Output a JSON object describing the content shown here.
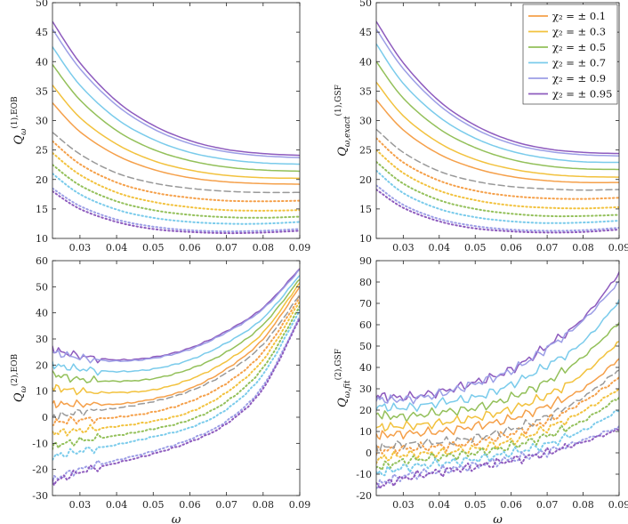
{
  "legend": {
    "entries": [
      {
        "label": "χ₂ = ± 0.1",
        "color": "#F5A04A"
      },
      {
        "label": "χ₂ = ± 0.3",
        "color": "#F2C23E"
      },
      {
        "label": "χ₂ = ± 0.5",
        "color": "#93C05A"
      },
      {
        "label": "χ₂ = ± 0.7",
        "color": "#7ACBEB"
      },
      {
        "label": "χ₂ = ± 0.9",
        "color": "#9C9EE6"
      },
      {
        "label": "χ₂ = ± 0.95",
        "color": "#8E5BBE"
      }
    ]
  },
  "chart_data": [
    {
      "type": "line",
      "panel": "top-left",
      "ylabel": "Q_ω^(1),EOB",
      "xlabel": "",
      "xlim": [
        0.0225,
        0.09
      ],
      "ylim": [
        10,
        50
      ],
      "xticks": [
        0.03,
        0.04,
        0.05,
        0.06,
        0.07,
        0.08,
        0.09
      ],
      "yticks": [
        10,
        15,
        20,
        25,
        30,
        35,
        40,
        45,
        50
      ],
      "x": [
        0.0225,
        0.03,
        0.04,
        0.05,
        0.06,
        0.07,
        0.08,
        0.09
      ],
      "reference": {
        "name": "χ₂ = 0",
        "values": [
          28.0,
          24.3,
          21.1,
          19.4,
          18.5,
          18.0,
          17.8,
          17.8
        ]
      },
      "series": [
        {
          "name": "+0.95",
          "values": [
            46.8,
            39.8,
            33.3,
            29.2,
            26.6,
            25.1,
            24.4,
            24.1
          ]
        },
        {
          "name": "+0.9",
          "values": [
            45.5,
            38.8,
            32.6,
            28.6,
            26.1,
            24.7,
            24.0,
            23.7
          ]
        },
        {
          "name": "+0.7",
          "values": [
            42.5,
            36.0,
            30.3,
            26.8,
            24.6,
            23.4,
            22.8,
            22.6
          ]
        },
        {
          "name": "+0.5",
          "values": [
            39.5,
            33.5,
            28.3,
            25.1,
            23.2,
            22.1,
            21.6,
            21.4
          ]
        },
        {
          "name": "+0.3",
          "values": [
            36.0,
            30.5,
            26.0,
            23.2,
            21.6,
            20.7,
            20.3,
            20.2
          ]
        },
        {
          "name": "+0.1",
          "values": [
            33.0,
            28.1,
            24.1,
            21.7,
            20.3,
            19.6,
            19.3,
            19.2
          ]
        },
        {
          "name": "-0.1",
          "values": [
            26.5,
            22.6,
            19.5,
            17.8,
            16.9,
            16.4,
            16.3,
            16.4
          ]
        },
        {
          "name": "-0.3",
          "values": [
            24.5,
            20.8,
            17.8,
            16.2,
            15.3,
            14.8,
            14.7,
            14.8
          ]
        },
        {
          "name": "-0.5",
          "values": [
            22.5,
            19.0,
            16.3,
            14.8,
            14.0,
            13.6,
            13.5,
            13.7
          ]
        },
        {
          "name": "-0.7",
          "values": [
            21.0,
            17.5,
            14.9,
            13.5,
            12.8,
            12.5,
            12.5,
            12.8
          ]
        },
        {
          "name": "-0.9",
          "values": [
            18.5,
            15.5,
            13.2,
            12.0,
            11.4,
            11.2,
            11.3,
            11.6
          ]
        },
        {
          "name": "-0.95",
          "values": [
            18.0,
            15.0,
            12.8,
            11.6,
            11.1,
            10.9,
            11.0,
            11.3
          ]
        }
      ]
    },
    {
      "type": "line",
      "panel": "top-right",
      "ylabel": "Q_ω,exact^(1),GSF",
      "xlabel": "",
      "xlim": [
        0.0225,
        0.09
      ],
      "ylim": [
        10,
        50
      ],
      "xticks": [
        0.03,
        0.04,
        0.05,
        0.06,
        0.07,
        0.08,
        0.09
      ],
      "yticks": [
        10,
        15,
        20,
        25,
        30,
        35,
        40,
        45,
        50
      ],
      "x": [
        0.0225,
        0.03,
        0.04,
        0.05,
        0.06,
        0.07,
        0.08,
        0.09
      ],
      "reference": {
        "name": "χ₂ = 0",
        "values": [
          28.5,
          24.6,
          21.4,
          19.7,
          18.8,
          18.4,
          18.2,
          18.3
        ]
      },
      "series": [
        {
          "name": "+0.95",
          "values": [
            46.8,
            39.8,
            33.3,
            29.2,
            26.6,
            25.2,
            24.6,
            24.4
          ]
        },
        {
          "name": "+0.9",
          "values": [
            45.5,
            38.8,
            32.6,
            28.6,
            26.1,
            24.8,
            24.2,
            24.0
          ]
        },
        {
          "name": "+0.7",
          "values": [
            43.0,
            36.3,
            30.6,
            27.0,
            24.8,
            23.6,
            23.0,
            22.9
          ]
        },
        {
          "name": "+0.5",
          "values": [
            40.0,
            33.8,
            28.6,
            25.4,
            23.4,
            22.3,
            21.8,
            21.7
          ]
        },
        {
          "name": "+0.3",
          "values": [
            36.5,
            30.8,
            26.2,
            23.4,
            21.8,
            20.9,
            20.5,
            20.4
          ]
        },
        {
          "name": "+0.1",
          "values": [
            33.5,
            28.4,
            24.3,
            21.9,
            20.5,
            19.8,
            19.5,
            19.5
          ]
        },
        {
          "name": "-0.1",
          "values": [
            27.0,
            22.9,
            19.8,
            18.1,
            17.2,
            16.8,
            16.7,
            16.9
          ]
        },
        {
          "name": "-0.3",
          "values": [
            25.0,
            21.1,
            18.1,
            16.5,
            15.6,
            15.2,
            15.1,
            15.3
          ]
        },
        {
          "name": "-0.5",
          "values": [
            23.0,
            19.3,
            16.5,
            15.0,
            14.2,
            13.8,
            13.8,
            14.0
          ]
        },
        {
          "name": "-0.7",
          "values": [
            21.5,
            17.7,
            15.0,
            13.6,
            12.9,
            12.6,
            12.7,
            13.0
          ]
        },
        {
          "name": "-0.9",
          "values": [
            19.0,
            15.7,
            13.3,
            12.1,
            11.5,
            11.3,
            11.4,
            11.8
          ]
        },
        {
          "name": "-0.95",
          "values": [
            18.3,
            15.2,
            12.9,
            11.7,
            11.2,
            11.0,
            11.1,
            11.5
          ]
        }
      ]
    },
    {
      "type": "line",
      "panel": "bottom-left",
      "ylabel": "Q_ω^(2),EOB",
      "xlabel": "ω",
      "xlim": [
        0.0225,
        0.09
      ],
      "ylim": [
        -30,
        60
      ],
      "xticks": [
        0.03,
        0.04,
        0.05,
        0.06,
        0.07,
        0.08,
        0.09
      ],
      "yticks": [
        -30,
        -20,
        -10,
        0,
        10,
        20,
        30,
        40,
        50,
        60
      ],
      "x": [
        0.0225,
        0.03,
        0.04,
        0.05,
        0.06,
        0.07,
        0.08,
        0.09
      ],
      "reference": {
        "name": "χ₂ = 0",
        "values": [
          0.0,
          2.0,
          3.5,
          6.0,
          10.0,
          17.0,
          28.0,
          47.0
        ]
      },
      "series": [
        {
          "name": "+0.95",
          "values": [
            26.0,
            23.5,
            22.0,
            23.0,
            26.5,
            33.0,
            42.0,
            57.0
          ]
        },
        {
          "name": "+0.9",
          "values": [
            25.0,
            22.8,
            21.5,
            22.6,
            26.0,
            32.5,
            41.5,
            56.5
          ]
        },
        {
          "name": "+0.7",
          "values": [
            20.0,
            18.5,
            17.5,
            18.5,
            22.0,
            28.5,
            38.0,
            54.5
          ]
        },
        {
          "name": "+0.5",
          "values": [
            16.5,
            14.5,
            13.8,
            14.8,
            18.5,
            25.0,
            35.5,
            53.0
          ]
        },
        {
          "name": "+0.3",
          "values": [
            11.5,
            10.0,
            9.5,
            10.5,
            14.5,
            21.5,
            32.5,
            51.5
          ]
        },
        {
          "name": "+0.1",
          "values": [
            5.0,
            5.0,
            5.0,
            7.0,
            11.0,
            18.5,
            30.0,
            50.0
          ]
        },
        {
          "name": "-0.1",
          "values": [
            -2.0,
            -1.0,
            0.0,
            2.0,
            6.0,
            13.0,
            25.0,
            46.0
          ]
        },
        {
          "name": "-0.3",
          "values": [
            -6.0,
            -5.0,
            -3.5,
            -1.5,
            2.0,
            9.5,
            22.0,
            44.5
          ]
        },
        {
          "name": "-0.5",
          "values": [
            -11.0,
            -9.0,
            -7.0,
            -4.5,
            -1.0,
            6.0,
            19.0,
            42.5
          ]
        },
        {
          "name": "-0.7",
          "values": [
            -15.0,
            -13.0,
            -10.5,
            -7.5,
            -4.0,
            3.0,
            16.5,
            41.0
          ]
        },
        {
          "name": "-0.9",
          "values": [
            -24.0,
            -20.0,
            -16.5,
            -13.0,
            -8.5,
            -1.5,
            12.0,
            38.5
          ]
        },
        {
          "name": "-0.95",
          "values": [
            -25.0,
            -21.0,
            -17.5,
            -14.0,
            -9.5,
            -2.5,
            11.0,
            38.0
          ]
        }
      ]
    },
    {
      "type": "line",
      "panel": "bottom-right",
      "ylabel": "Q_ω,fit^(2),GSF",
      "xlabel": "ω",
      "xlim": [
        0.0225,
        0.09
      ],
      "ylim": [
        -20,
        90
      ],
      "xticks": [
        0.03,
        0.04,
        0.05,
        0.06,
        0.07,
        0.08,
        0.09
      ],
      "yticks": [
        -20,
        -10,
        0,
        10,
        20,
        30,
        40,
        50,
        60,
        70,
        80,
        90
      ],
      "x": [
        0.0225,
        0.03,
        0.04,
        0.05,
        0.06,
        0.07,
        0.08,
        0.09
      ],
      "reference": {
        "name": "χ₂ = 0",
        "values": [
          2.0,
          4.0,
          5.0,
          7.0,
          11.0,
          17.0,
          26.0,
          39.0
        ]
      },
      "series": [
        {
          "name": "+0.95",
          "values": [
            27.0,
            26.0,
            28.5,
            33.0,
            39.0,
            50.0,
            63.0,
            84.0
          ]
        },
        {
          "name": "+0.9",
          "values": [
            25.0,
            25.0,
            27.5,
            32.5,
            38.5,
            49.0,
            62.0,
            80.0
          ]
        },
        {
          "name": "+0.7",
          "values": [
            22.0,
            21.0,
            23.5,
            26.0,
            32.0,
            41.0,
            52.0,
            71.0
          ]
        },
        {
          "name": "+0.5",
          "values": [
            18.0,
            17.0,
            19.0,
            21.0,
            26.0,
            33.5,
            45.0,
            61.0
          ]
        },
        {
          "name": "+0.3",
          "values": [
            12.0,
            12.5,
            14.0,
            16.5,
            20.5,
            27.0,
            37.0,
            52.0
          ]
        },
        {
          "name": "+0.1",
          "values": [
            8.0,
            9.0,
            10.0,
            12.5,
            16.0,
            22.0,
            30.0,
            44.0
          ]
        },
        {
          "name": "-0.1",
          "values": [
            1.0,
            2.0,
            3.0,
            5.0,
            9.0,
            15.0,
            24.0,
            35.0
          ]
        },
        {
          "name": "-0.3",
          "values": [
            -3.0,
            -1.0,
            0.0,
            2.0,
            5.5,
            11.5,
            19.5,
            30.0
          ]
        },
        {
          "name": "-0.5",
          "values": [
            -7.0,
            -4.0,
            -2.0,
            0.0,
            3.0,
            8.0,
            15.0,
            26.0
          ]
        },
        {
          "name": "-0.7",
          "values": [
            -10.0,
            -7.0,
            -5.0,
            -3.0,
            0.0,
            4.0,
            10.5,
            20.0
          ]
        },
        {
          "name": "-0.9",
          "values": [
            -15.0,
            -11.0,
            -8.5,
            -6.0,
            -3.0,
            0.5,
            6.0,
            12.0
          ]
        },
        {
          "name": "-0.95",
          "values": [
            -16.0,
            -12.0,
            -9.0,
            -6.5,
            -3.5,
            0.0,
            5.0,
            11.0
          ]
        }
      ]
    }
  ]
}
